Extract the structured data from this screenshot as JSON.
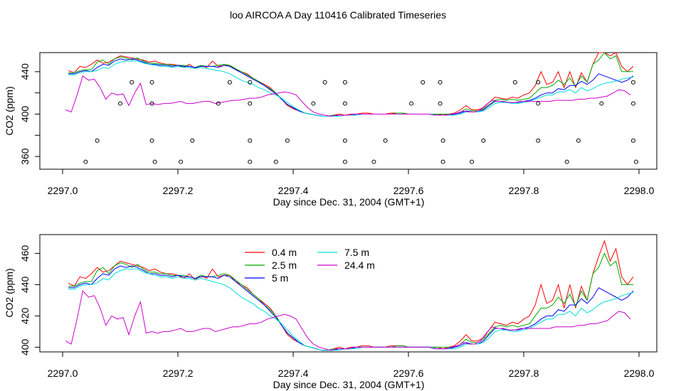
{
  "title": "loo AIRCOA A  Day 110416  Calibrated Timeseries",
  "series_colors": {
    "0.4 m": "#ff0000",
    "2.5 m": "#00aa00",
    "5 m": "#0000ff",
    "7.5 m": "#00dddd",
    "24.4 m": "#cc00cc"
  },
  "chart_data": [
    {
      "type": "line",
      "xlabel": "Day since Dec. 31, 2004 (GMT+1)",
      "ylabel": "CO2 (ppm)",
      "xlim": [
        2297.0,
        2298.0
      ],
      "ylim": [
        348,
        458
      ],
      "xticks": [
        "2297.0",
        "2297.2",
        "2297.4",
        "2297.6",
        "2297.8",
        "2298.0"
      ],
      "xtick_values": [
        2297.0,
        2297.2,
        2297.4,
        2297.6,
        2297.8,
        2298.0
      ],
      "yticks": [
        "360",
        "400",
        "440"
      ],
      "ytick_values": [
        360,
        400,
        440
      ],
      "grid": false,
      "series_names": [
        "0.4 m",
        "2.5 m",
        "5 m",
        "7.5 m",
        "24.4 m"
      ],
      "outlier_points": {
        "x": [
          2297.04,
          2297.06,
          2297.1,
          2297.12,
          2297.155,
          2297.155,
          2297.155,
          2297.16,
          2297.205,
          2297.225,
          2297.27,
          2297.29,
          2297.325,
          2297.325,
          2297.325,
          2297.325,
          2297.37,
          2297.39,
          2297.435,
          2297.455,
          2297.49,
          2297.49,
          2297.49,
          2297.49,
          2297.54,
          2297.56,
          2297.605,
          2297.625,
          2297.655,
          2297.655,
          2297.66,
          2297.66,
          2297.71,
          2297.73,
          2297.785,
          2297.825,
          2297.825,
          2297.825,
          2297.875,
          2297.895,
          2297.935,
          2297.99,
          2297.99,
          2297.99,
          2297.995
        ],
        "y": [
          355,
          375,
          410,
          430,
          430,
          410,
          375,
          355,
          355,
          375,
          410,
          430,
          430,
          410,
          375,
          355,
          355,
          375,
          410,
          430,
          430,
          410,
          375,
          355,
          355,
          375,
          410,
          430,
          430,
          410,
          375,
          355,
          355,
          375,
          430,
          430,
          410,
          375,
          355,
          375,
          410,
          430,
          410,
          375,
          355
        ]
      }
    },
    {
      "type": "line",
      "xlabel": "Day since Dec. 31, 2004 (GMT+1)",
      "ylabel": "CO2 (ppm)",
      "xlim": [
        2297.0,
        2298.0
      ],
      "ylim": [
        397,
        472
      ],
      "xticks": [
        "2297.0",
        "2297.2",
        "2297.4",
        "2297.6",
        "2297.8",
        "2298.0"
      ],
      "xtick_values": [
        2297.0,
        2297.2,
        2297.4,
        2297.6,
        2297.8,
        2298.0
      ],
      "yticks": [
        "400",
        "420",
        "440",
        "460"
      ],
      "ytick_values": [
        400,
        420,
        440,
        460
      ],
      "grid": false,
      "legend": "top-center"
    }
  ],
  "series": [
    {
      "name": "0.4 m",
      "x": [
        2297.01,
        2297.02,
        2297.03,
        2297.04,
        2297.05,
        2297.06,
        2297.07,
        2297.08,
        2297.09,
        2297.1,
        2297.11,
        2297.12,
        2297.13,
        2297.14,
        2297.15,
        2297.16,
        2297.17,
        2297.18,
        2297.19,
        2297.2,
        2297.21,
        2297.22,
        2297.23,
        2297.24,
        2297.25,
        2297.26,
        2297.27,
        2297.28,
        2297.29,
        2297.3,
        2297.31,
        2297.32,
        2297.33,
        2297.34,
        2297.35,
        2297.36,
        2297.37,
        2297.38,
        2297.39,
        2297.4,
        2297.41,
        2297.42,
        2297.43,
        2297.44,
        2297.45,
        2297.46,
        2297.47,
        2297.48,
        2297.49,
        2297.5,
        2297.51,
        2297.52,
        2297.53,
        2297.54,
        2297.55,
        2297.56,
        2297.57,
        2297.58,
        2297.59,
        2297.6,
        2297.61,
        2297.62,
        2297.63,
        2297.64,
        2297.65,
        2297.66,
        2297.67,
        2297.68,
        2297.69,
        2297.7,
        2297.71,
        2297.72,
        2297.73,
        2297.74,
        2297.75,
        2297.76,
        2297.77,
        2297.78,
        2297.79,
        2297.8,
        2297.81,
        2297.82,
        2297.83,
        2297.84,
        2297.85,
        2297.86,
        2297.87,
        2297.88,
        2297.89,
        2297.9,
        2297.91,
        2297.92,
        2297.93,
        2297.94,
        2297.95,
        2297.96,
        2297.97,
        2297.98,
        2297.99
      ],
      "y": [
        441,
        439,
        445,
        444,
        447,
        451,
        448,
        449,
        452,
        455,
        454,
        453,
        452,
        451,
        449,
        450,
        448,
        447,
        447,
        446,
        444,
        447,
        443,
        446,
        444,
        450,
        445,
        446,
        446,
        442,
        440,
        438,
        434,
        431,
        428,
        425,
        420,
        414,
        408,
        405,
        403,
        401,
        400,
        399,
        398,
        398,
        399,
        400,
        399,
        400,
        400,
        401,
        401,
        400,
        400,
        400,
        401,
        401,
        401,
        400,
        400,
        400,
        400,
        400,
        400,
        399,
        400,
        401,
        404,
        408,
        404,
        404,
        406,
        411,
        416,
        415,
        414,
        416,
        415,
        418,
        420,
        427,
        440,
        428,
        430,
        440,
        425,
        440,
        425,
        439,
        430,
        447,
        458,
        468,
        455,
        463,
        445,
        440,
        445
      ]
    },
    {
      "name": "2.5 m",
      "x": [
        2297.01,
        2297.02,
        2297.03,
        2297.04,
        2297.05,
        2297.06,
        2297.07,
        2297.08,
        2297.09,
        2297.1,
        2297.11,
        2297.12,
        2297.13,
        2297.14,
        2297.15,
        2297.16,
        2297.17,
        2297.18,
        2297.19,
        2297.2,
        2297.21,
        2297.22,
        2297.23,
        2297.24,
        2297.25,
        2297.26,
        2297.27,
        2297.28,
        2297.29,
        2297.3,
        2297.31,
        2297.32,
        2297.33,
        2297.34,
        2297.35,
        2297.36,
        2297.37,
        2297.38,
        2297.39,
        2297.4,
        2297.41,
        2297.42,
        2297.43,
        2297.44,
        2297.45,
        2297.46,
        2297.47,
        2297.48,
        2297.49,
        2297.5,
        2297.51,
        2297.52,
        2297.53,
        2297.54,
        2297.55,
        2297.56,
        2297.57,
        2297.58,
        2297.59,
        2297.6,
        2297.61,
        2297.62,
        2297.63,
        2297.64,
        2297.65,
        2297.66,
        2297.67,
        2297.68,
        2297.69,
        2297.7,
        2297.71,
        2297.72,
        2297.73,
        2297.74,
        2297.75,
        2297.76,
        2297.77,
        2297.78,
        2297.79,
        2297.8,
        2297.81,
        2297.82,
        2297.83,
        2297.84,
        2297.85,
        2297.86,
        2297.87,
        2297.88,
        2297.89,
        2297.9,
        2297.91,
        2297.92,
        2297.93,
        2297.94,
        2297.95,
        2297.96,
        2297.97,
        2297.98,
        2297.99
      ],
      "y": [
        439,
        439,
        441,
        442,
        442,
        449,
        451,
        447,
        452,
        454,
        453,
        451,
        453,
        450,
        448,
        448,
        447,
        447,
        446,
        446,
        446,
        445,
        444,
        446,
        445,
        445,
        446,
        447,
        446,
        443,
        440,
        437,
        434,
        431,
        427,
        424,
        420,
        414,
        409,
        406,
        403,
        401,
        400,
        399,
        398,
        398,
        399,
        399,
        399,
        399,
        400,
        400,
        400,
        400,
        400,
        400,
        400,
        401,
        401,
        400,
        400,
        400,
        400,
        400,
        400,
        400,
        400,
        400,
        402,
        405,
        403,
        403,
        405,
        409,
        413,
        414,
        413,
        414,
        413,
        414,
        415,
        420,
        425,
        425,
        427,
        432,
        428,
        434,
        426,
        436,
        430,
        447,
        451,
        460,
        452,
        455,
        440,
        440,
        440
      ]
    },
    {
      "name": "5 m",
      "x": [
        2297.01,
        2297.02,
        2297.03,
        2297.04,
        2297.05,
        2297.06,
        2297.07,
        2297.08,
        2297.09,
        2297.1,
        2297.11,
        2297.12,
        2297.13,
        2297.14,
        2297.15,
        2297.16,
        2297.17,
        2297.18,
        2297.19,
        2297.2,
        2297.21,
        2297.22,
        2297.23,
        2297.24,
        2297.25,
        2297.26,
        2297.27,
        2297.28,
        2297.29,
        2297.3,
        2297.31,
        2297.32,
        2297.33,
        2297.34,
        2297.35,
        2297.36,
        2297.37,
        2297.38,
        2297.39,
        2297.4,
        2297.41,
        2297.42,
        2297.43,
        2297.44,
        2297.45,
        2297.46,
        2297.47,
        2297.48,
        2297.49,
        2297.5,
        2297.51,
        2297.52,
        2297.53,
        2297.54,
        2297.55,
        2297.56,
        2297.57,
        2297.58,
        2297.59,
        2297.6,
        2297.61,
        2297.62,
        2297.63,
        2297.64,
        2297.65,
        2297.66,
        2297.67,
        2297.68,
        2297.69,
        2297.7,
        2297.71,
        2297.72,
        2297.73,
        2297.74,
        2297.75,
        2297.76,
        2297.77,
        2297.78,
        2297.79,
        2297.8,
        2297.81,
        2297.82,
        2297.83,
        2297.84,
        2297.85,
        2297.86,
        2297.87,
        2297.88,
        2297.89,
        2297.9,
        2297.91,
        2297.92,
        2297.93,
        2297.94,
        2297.95,
        2297.96,
        2297.97,
        2297.98,
        2297.99
      ],
      "y": [
        438,
        438,
        440,
        441,
        440,
        444,
        447,
        446,
        450,
        452,
        451,
        452,
        451,
        449,
        447,
        447,
        446,
        446,
        445,
        446,
        445,
        445,
        444,
        445,
        445,
        445,
        444,
        446,
        445,
        442,
        439,
        436,
        433,
        430,
        427,
        423,
        419,
        414,
        409,
        406,
        403,
        401,
        400,
        399,
        398,
        398,
        398,
        399,
        399,
        399,
        400,
        400,
        400,
        400,
        400,
        400,
        400,
        400,
        400,
        400,
        400,
        400,
        400,
        400,
        399,
        399,
        399,
        400,
        401,
        403,
        402,
        402,
        404,
        408,
        412,
        412,
        411,
        411,
        411,
        412,
        413,
        415,
        418,
        420,
        420,
        424,
        423,
        427,
        427,
        431,
        428,
        432,
        438,
        436,
        434,
        432,
        430,
        432,
        436
      ]
    },
    {
      "name": "7.5 m",
      "x": [
        2297.01,
        2297.02,
        2297.03,
        2297.04,
        2297.05,
        2297.06,
        2297.07,
        2297.08,
        2297.09,
        2297.1,
        2297.11,
        2297.12,
        2297.13,
        2297.14,
        2297.15,
        2297.16,
        2297.17,
        2297.18,
        2297.19,
        2297.2,
        2297.21,
        2297.22,
        2297.23,
        2297.24,
        2297.25,
        2297.26,
        2297.27,
        2297.28,
        2297.29,
        2297.3,
        2297.31,
        2297.32,
        2297.33,
        2297.34,
        2297.35,
        2297.36,
        2297.37,
        2297.38,
        2297.39,
        2297.4,
        2297.41,
        2297.42,
        2297.43,
        2297.44,
        2297.45,
        2297.46,
        2297.47,
        2297.48,
        2297.49,
        2297.5,
        2297.51,
        2297.52,
        2297.53,
        2297.54,
        2297.55,
        2297.56,
        2297.57,
        2297.58,
        2297.59,
        2297.6,
        2297.61,
        2297.62,
        2297.63,
        2297.64,
        2297.65,
        2297.66,
        2297.67,
        2297.68,
        2297.69,
        2297.7,
        2297.71,
        2297.72,
        2297.73,
        2297.74,
        2297.75,
        2297.76,
        2297.77,
        2297.78,
        2297.79,
        2297.8,
        2297.81,
        2297.82,
        2297.83,
        2297.84,
        2297.85,
        2297.86,
        2297.87,
        2297.88,
        2297.89,
        2297.9,
        2297.91,
        2297.92,
        2297.93,
        2297.94,
        2297.95,
        2297.96,
        2297.97,
        2297.98,
        2297.99
      ],
      "y": [
        437,
        437,
        439,
        440,
        440,
        441,
        444,
        443,
        447,
        449,
        450,
        450,
        450,
        448,
        447,
        446,
        445,
        445,
        444,
        445,
        444,
        444,
        443,
        444,
        443,
        442,
        441,
        440,
        438,
        435,
        432,
        430,
        428,
        425,
        423,
        420,
        418,
        415,
        411,
        407,
        404,
        401,
        400,
        399,
        398,
        398,
        398,
        398,
        399,
        399,
        399,
        400,
        400,
        400,
        400,
        400,
        400,
        400,
        400,
        400,
        400,
        400,
        400,
        400,
        399,
        399,
        399,
        399,
        400,
        402,
        402,
        402,
        403,
        406,
        410,
        411,
        411,
        410,
        410,
        411,
        412,
        414,
        416,
        418,
        418,
        421,
        421,
        423,
        420,
        425,
        422,
        424,
        427,
        429,
        430,
        431,
        433,
        434,
        435
      ]
    },
    {
      "name": "24.4 m",
      "x": [
        2297.005,
        2297.015,
        2297.025,
        2297.035,
        2297.045,
        2297.055,
        2297.065,
        2297.075,
        2297.085,
        2297.095,
        2297.105,
        2297.115,
        2297.125,
        2297.135,
        2297.145,
        2297.155,
        2297.165,
        2297.175,
        2297.185,
        2297.195,
        2297.205,
        2297.215,
        2297.225,
        2297.235,
        2297.245,
        2297.255,
        2297.265,
        2297.275,
        2297.285,
        2297.295,
        2297.305,
        2297.315,
        2297.325,
        2297.335,
        2297.345,
        2297.355,
        2297.365,
        2297.375,
        2297.385,
        2297.395,
        2297.405,
        2297.415,
        2297.425,
        2297.435,
        2297.445,
        2297.455,
        2297.465,
        2297.475,
        2297.485,
        2297.495,
        2297.505,
        2297.515,
        2297.525,
        2297.535,
        2297.545,
        2297.555,
        2297.565,
        2297.575,
        2297.585,
        2297.595,
        2297.605,
        2297.615,
        2297.625,
        2297.635,
        2297.645,
        2297.655,
        2297.665,
        2297.675,
        2297.685,
        2297.695,
        2297.705,
        2297.715,
        2297.725,
        2297.735,
        2297.745,
        2297.755,
        2297.765,
        2297.775,
        2297.785,
        2297.795,
        2297.805,
        2297.815,
        2297.825,
        2297.835,
        2297.845,
        2297.855,
        2297.865,
        2297.875,
        2297.885,
        2297.895,
        2297.905,
        2297.915,
        2297.925,
        2297.935,
        2297.945,
        2297.955,
        2297.965,
        2297.975,
        2297.985
      ],
      "y": [
        404,
        402,
        418,
        436,
        432,
        433,
        425,
        414,
        420,
        418,
        419,
        408,
        420,
        429,
        409,
        410,
        409,
        410,
        410,
        411,
        412,
        410,
        410,
        411,
        412,
        412,
        410,
        411,
        412,
        413,
        413,
        414,
        415,
        415,
        416,
        418,
        419,
        420,
        421,
        420,
        418,
        412,
        406,
        402,
        400,
        399,
        398,
        399,
        399,
        399,
        400,
        400,
        400,
        400,
        400,
        400,
        400,
        400,
        400,
        400,
        400,
        400,
        400,
        400,
        399,
        399,
        399,
        400,
        401,
        403,
        402,
        402,
        404,
        409,
        413,
        412,
        412,
        411,
        411,
        412,
        412,
        412,
        412,
        412,
        412,
        413,
        413,
        413,
        413,
        414,
        414,
        415,
        415,
        416,
        417,
        420,
        423,
        422,
        418
      ]
    }
  ]
}
